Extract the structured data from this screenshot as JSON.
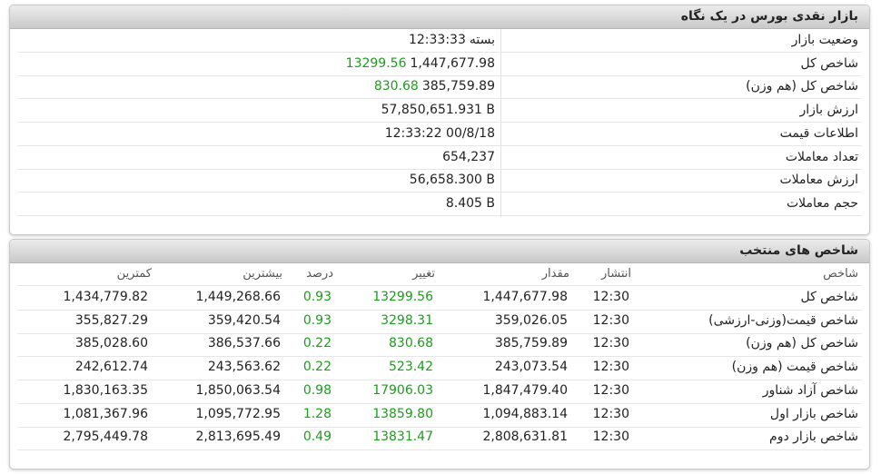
{
  "summary": {
    "title": "بازار نقدی بورس در یک نگاه",
    "rows": [
      {
        "label": "وضعیت بازار",
        "value": "12:33:33",
        "status": "بسته"
      },
      {
        "label": "شاخص کل",
        "value": "1,447,677.98",
        "change": "13299.56"
      },
      {
        "label": "شاخص کل (هم وزن)",
        "value": "385,759.89",
        "change": "830.68"
      },
      {
        "label": "ارزش بازار",
        "value": "57,850,651.931 B"
      },
      {
        "label": "اطلاعات قیمت",
        "value": "12:33:22 00/8/18"
      },
      {
        "label": "تعداد معاملات",
        "value": "654,237"
      },
      {
        "label": "ارزش معاملات",
        "value": "56,658.300 B"
      },
      {
        "label": "حجم معاملات",
        "value": "8.405 B"
      }
    ]
  },
  "indices": {
    "title": "شاخص های منتخب",
    "headers": [
      "شاخص",
      "انتشار",
      "مقدار",
      "تغییر",
      "درصد",
      "بیشترین",
      "کمترین"
    ],
    "rows": [
      [
        "شاخص کل",
        "12:30",
        "1,447,677.98",
        "13299.56",
        "0.93",
        "1,449,268.66",
        "1,434,779.82"
      ],
      [
        "شاخص قیمت(وزنی-ارزشی)",
        "12:30",
        "359,026.05",
        "3298.31",
        "0.93",
        "359,420.54",
        "355,827.29"
      ],
      [
        "شاخص کل (هم وزن)",
        "12:30",
        "385,759.89",
        "830.68",
        "0.22",
        "386,537.66",
        "385,028.60"
      ],
      [
        "شاخص قیمت (هم وزن)",
        "12:30",
        "243,073.54",
        "523.42",
        "0.22",
        "243,563.62",
        "242,612.74"
      ],
      [
        "شاخص آزاد شناور",
        "12:30",
        "1,847,479.40",
        "17906.03",
        "0.98",
        "1,850,063.54",
        "1,830,163.35"
      ],
      [
        "شاخص بازار اول",
        "12:30",
        "1,094,883.14",
        "13859.80",
        "1.28",
        "1,095,772.95",
        "1,081,367.96"
      ],
      [
        "شاخص بازار دوم",
        "12:30",
        "2,808,631.81",
        "13831.47",
        "0.49",
        "2,813,695.49",
        "2,795,449.78"
      ]
    ]
  }
}
